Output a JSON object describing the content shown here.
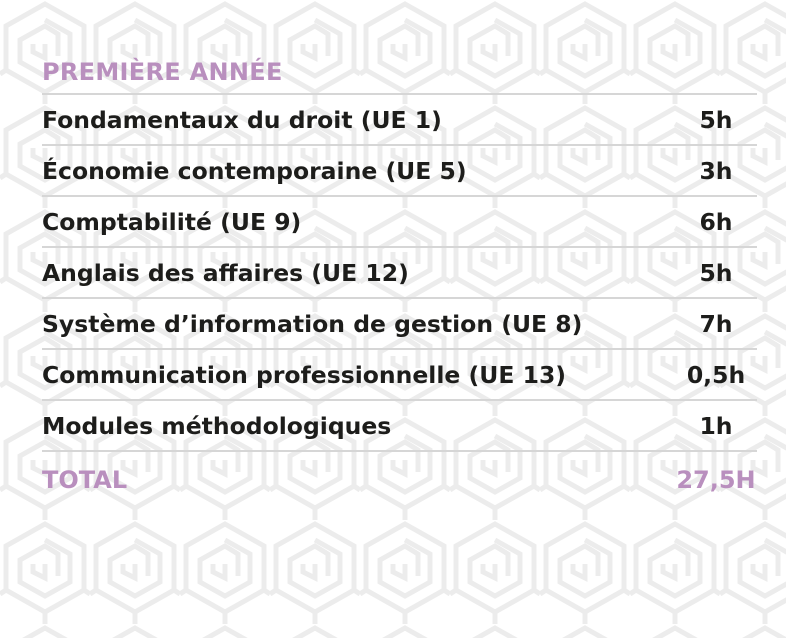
{
  "colors": {
    "accent": "#b98fbe",
    "text": "#1d1d1b",
    "divider": "#d6d6d6",
    "pattern": "#ececec"
  },
  "section": {
    "title": "PREMIÈRE ANNÉE"
  },
  "courses": [
    {
      "name": "Fondamentaux du droit (UE 1)",
      "hours": "5h"
    },
    {
      "name": "Économie contemporaine (UE 5)",
      "hours": "3h"
    },
    {
      "name": "Comptabilité (UE 9)",
      "hours": "6h"
    },
    {
      "name": "Anglais des affaires (UE 12)",
      "hours": "5h"
    },
    {
      "name": "Système d’information de gestion (UE 8)",
      "hours": "7h"
    },
    {
      "name": "Communication professionnelle (UE 13)",
      "hours": "0,5h"
    },
    {
      "name": "Modules méthodologiques",
      "hours": "1h"
    }
  ],
  "total": {
    "label": "TOTAL",
    "value": "27,5H"
  }
}
